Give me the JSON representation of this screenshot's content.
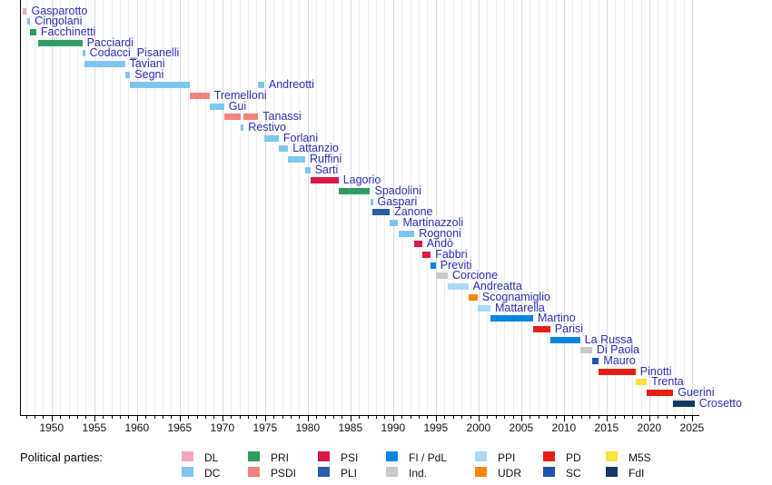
{
  "chart_data": {
    "type": "timeline",
    "title": "",
    "xlabel": "",
    "x_domain": [
      1946.3,
      2025.65
    ],
    "x_ticks": [
      1950,
      1955,
      1960,
      1965,
      1970,
      1975,
      1980,
      1985,
      1990,
      1995,
      2000,
      2005,
      2010,
      2015,
      2020,
      2025
    ],
    "minor_tick_every": 1,
    "grid": true,
    "label_color": "#2b2bb2",
    "parties": {
      "DL": "#F7A6BB",
      "DC": "#7FC6EF",
      "PRI": "#2E9E60",
      "PSDI": "#F0837B",
      "PSI": "#DC1743",
      "PLI": "#2A5CAA",
      "FI/PdL": "#0A84E0",
      "Ind.": "#C9C9C9",
      "PPI": "#A9D9F7",
      "UDR": "#F5870F",
      "PD": "#E32017",
      "SC": "#2153AE",
      "M5S": "#F8E33A",
      "FdI": "#12386B"
    },
    "rows": [
      {
        "name": "Gasparotto",
        "party": "DL",
        "segments": [
          [
            1946.6,
            1947.1
          ]
        ]
      },
      {
        "name": "Cingolani",
        "party": "DC",
        "segments": [
          [
            1947.1,
            1947.5
          ]
        ]
      },
      {
        "name": "Facchinetti",
        "party": "PRI",
        "segments": [
          [
            1947.5,
            1948.2
          ]
        ]
      },
      {
        "name": "Pacciardi",
        "party": "PRI",
        "segments": [
          [
            1948.4,
            1953.6
          ]
        ]
      },
      {
        "name": "Codacci_Pisanelli",
        "party": "DC",
        "segments": [
          [
            1953.6,
            1953.8
          ]
        ]
      },
      {
        "name": "Taviani",
        "party": "DC",
        "segments": [
          [
            1953.8,
            1958.6
          ]
        ]
      },
      {
        "name": "Segni",
        "party": "DC",
        "segments": [
          [
            1958.6,
            1959.2
          ]
        ]
      },
      {
        "name": "Andreotti",
        "party": "DC",
        "segments": [
          [
            1959.2,
            1966.2
          ],
          [
            1974.2,
            1974.9
          ]
        ]
      },
      {
        "name": "Tremelloni",
        "party": "PSDI",
        "segments": [
          [
            1966.2,
            1968.5
          ]
        ]
      },
      {
        "name": "Gui",
        "party": "DC",
        "segments": [
          [
            1968.5,
            1970.2
          ]
        ]
      },
      {
        "name": "Tanassi",
        "party": "PSDI",
        "segments": [
          [
            1970.2,
            1972.1
          ],
          [
            1972.5,
            1974.2
          ]
        ]
      },
      {
        "name": "Restivo",
        "party": "DC",
        "segments": [
          [
            1972.1,
            1972.5
          ]
        ]
      },
      {
        "name": "Forlani",
        "party": "DC",
        "segments": [
          [
            1974.9,
            1976.6
          ]
        ]
      },
      {
        "name": "Lattanzio",
        "party": "DC",
        "segments": [
          [
            1976.6,
            1977.7
          ]
        ]
      },
      {
        "name": "Ruffini",
        "party": "DC",
        "segments": [
          [
            1977.7,
            1979.7
          ]
        ]
      },
      {
        "name": "Sarti",
        "party": "DC",
        "segments": [
          [
            1979.7,
            1980.3
          ]
        ]
      },
      {
        "name": "Lagorio",
        "party": "PSI",
        "segments": [
          [
            1980.3,
            1983.6
          ]
        ]
      },
      {
        "name": "Spadolini",
        "party": "PRI",
        "segments": [
          [
            1983.6,
            1987.3
          ]
        ]
      },
      {
        "name": "Gaspari",
        "party": "DC",
        "segments": [
          [
            1987.3,
            1987.6
          ]
        ]
      },
      {
        "name": "Zanone",
        "party": "PLI",
        "segments": [
          [
            1987.6,
            1989.6
          ]
        ]
      },
      {
        "name": "Martinazzoli",
        "party": "DC",
        "segments": [
          [
            1989.6,
            1990.6
          ]
        ]
      },
      {
        "name": "Rognoni",
        "party": "DC",
        "segments": [
          [
            1990.6,
            1992.5
          ]
        ]
      },
      {
        "name": "Andò",
        "party": "PSI",
        "segments": [
          [
            1992.5,
            1993.4
          ]
        ]
      },
      {
        "name": "Fabbri",
        "party": "PSI",
        "segments": [
          [
            1993.4,
            1994.4
          ]
        ]
      },
      {
        "name": "Previti",
        "party": "FI/PdL",
        "segments": [
          [
            1994.4,
            1995.0
          ]
        ]
      },
      {
        "name": "Corcione",
        "party": "Ind.",
        "segments": [
          [
            1995.0,
            1996.4
          ]
        ]
      },
      {
        "name": "Andreatta",
        "party": "PPI",
        "segments": [
          [
            1996.4,
            1998.8
          ]
        ]
      },
      {
        "name": "Scognamiglio",
        "party": "UDR",
        "segments": [
          [
            1998.8,
            1999.9
          ]
        ]
      },
      {
        "name": "Mattarella",
        "party": "PPI",
        "segments": [
          [
            1999.9,
            2001.4
          ]
        ]
      },
      {
        "name": "Martino",
        "party": "FI/PdL",
        "segments": [
          [
            2001.4,
            2006.4
          ]
        ]
      },
      {
        "name": "Parisi",
        "party": "PD",
        "segments": [
          [
            2006.4,
            2008.4
          ]
        ]
      },
      {
        "name": "La Russa",
        "party": "FI/PdL",
        "segments": [
          [
            2008.4,
            2011.9
          ]
        ]
      },
      {
        "name": "Di Paola",
        "party": "Ind.",
        "segments": [
          [
            2011.9,
            2013.3
          ]
        ]
      },
      {
        "name": "Mauro",
        "party": "SC",
        "segments": [
          [
            2013.3,
            2014.1
          ]
        ]
      },
      {
        "name": "Pinotti",
        "party": "PD",
        "segments": [
          [
            2014.1,
            2018.4
          ]
        ]
      },
      {
        "name": "Trenta",
        "party": "M5S",
        "segments": [
          [
            2018.4,
            2019.7
          ]
        ]
      },
      {
        "name": "Guerini",
        "party": "PD",
        "segments": [
          [
            2019.7,
            2022.8
          ]
        ]
      },
      {
        "name": "Crosetto",
        "party": "FdI",
        "segments": [
          [
            2022.8,
            2025.3
          ]
        ]
      }
    ],
    "legend": {
      "heading": "Political parties:",
      "position": "bottom",
      "entries": [
        {
          "label": "DL",
          "party": "DL"
        },
        {
          "label": "DC",
          "party": "DC"
        },
        {
          "label": "PRI",
          "party": "PRI"
        },
        {
          "label": "PSDI",
          "party": "PSDI"
        },
        {
          "label": "PSI",
          "party": "PSI"
        },
        {
          "label": "PLI",
          "party": "PLI"
        },
        {
          "label": "FI / PdL",
          "party": "FI/PdL"
        },
        {
          "label": "Ind.",
          "party": "Ind."
        },
        {
          "label": "PPI",
          "party": "PPI"
        },
        {
          "label": "UDR",
          "party": "UDR"
        },
        {
          "label": "PD",
          "party": "PD"
        },
        {
          "label": "SC",
          "party": "SC"
        },
        {
          "label": "M5S",
          "party": "M5S"
        },
        {
          "label": "FdI",
          "party": "FdI"
        }
      ]
    }
  }
}
